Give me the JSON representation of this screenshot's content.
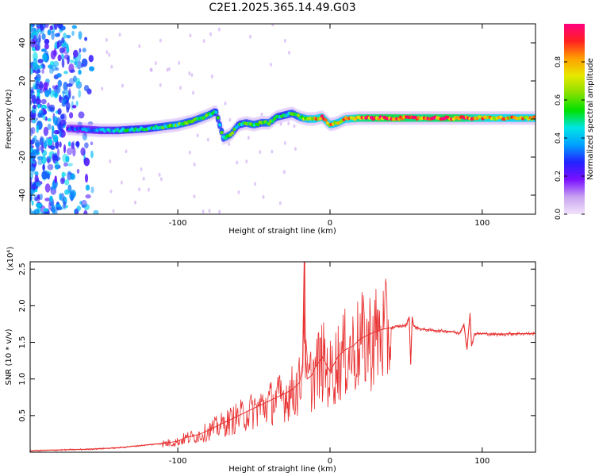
{
  "title": "C2E1.2025.365.14.49.G03",
  "chart_data": [
    {
      "type": "heatmap",
      "title": "C2E1.2025.365.14.49.G03",
      "xlabel": "Height of straight line (km)",
      "ylabel": "Frequency (Hz)",
      "xlim": [
        -197,
        135
      ],
      "ylim": [
        -50,
        50
      ],
      "xticks": [
        -100,
        0,
        100
      ],
      "xtick_labels": [
        "-100",
        "0",
        "100"
      ],
      "yticks": [
        -40,
        -20,
        0,
        20,
        40
      ],
      "ytick_labels": [
        "-40",
        "-20",
        "0",
        "20",
        "40"
      ],
      "grid": false,
      "colorbar": {
        "label": "Normalized spectral amplitude",
        "range": [
          0,
          1
        ],
        "ticks": [
          0.0,
          0.2,
          0.4,
          0.6,
          0.8
        ],
        "tick_labels": [
          "0.0",
          "0.2",
          "0.4",
          "0.6",
          "0.8"
        ],
        "colormap": [
          "#f2e4fb",
          "#c9a3f0",
          "#7a10ff",
          "#2222ff",
          "#00a0ff",
          "#00e5e5",
          "#00e000",
          "#88e000",
          "#e8e800",
          "#ffa000",
          "#ff2020",
          "#ff0080"
        ]
      },
      "ridge": {
        "x": [
          -170,
          -160,
          -150,
          -140,
          -130,
          -120,
          -110,
          -100,
          -90,
          -80,
          -75,
          -70,
          -65,
          -60,
          -55,
          -50,
          -45,
          -40,
          -35,
          -30,
          -25,
          -20,
          -15,
          -10,
          -5,
          0,
          5,
          10,
          20,
          40,
          60,
          80,
          100,
          120,
          135
        ],
        "y": [
          -5,
          -5.5,
          -6,
          -6,
          -5.5,
          -5,
          -4,
          -3,
          -1,
          2,
          4,
          -10,
          -8,
          -3,
          -2,
          -3,
          -2,
          -2,
          1,
          2,
          3,
          1,
          0,
          0,
          1,
          -3,
          -2,
          0,
          0.5,
          0.5,
          0.5,
          0.5,
          0.5,
          0.5,
          0.5
        ],
        "amplitude": [
          0.3,
          0.35,
          0.4,
          0.45,
          0.5,
          0.5,
          0.55,
          0.6,
          0.55,
          0.6,
          0.5,
          0.55,
          0.6,
          0.5,
          0.55,
          0.6,
          0.55,
          0.6,
          0.55,
          0.5,
          0.55,
          0.6,
          0.75,
          0.8,
          0.85,
          0.8,
          0.75,
          0.8,
          0.9,
          0.95,
          0.9,
          0.95,
          0.85,
          0.8,
          0.8
        ]
      }
    },
    {
      "type": "line",
      "xlabel": "Height of straight line (km)",
      "ylabel": "SNR (10 * v/v)",
      "y_multiplier_label": "(x10⁴)",
      "xlim": [
        -197,
        135
      ],
      "ylim": [
        0,
        2.6
      ],
      "xticks": [
        -100,
        0,
        100
      ],
      "xtick_labels": [
        "-100",
        "0",
        "100"
      ],
      "yticks": [
        0.5,
        1.0,
        1.5,
        2.0,
        2.5
      ],
      "ytick_labels": [
        "0.5",
        "1.0",
        "1.5",
        "2.0",
        "2.5"
      ],
      "grid": false,
      "series": [
        {
          "color": "#e83030",
          "x": [
            -197,
            -180,
            -160,
            -150,
            -140,
            -130,
            -120,
            -110,
            -100,
            -95,
            -90,
            -85,
            -80,
            -75,
            -70,
            -65,
            -60,
            -55,
            -50,
            -45,
            -40,
            -35,
            -30,
            -25,
            -20,
            -18,
            -17,
            -16,
            -15,
            -12,
            -10,
            -5,
            0,
            5,
            10,
            15,
            20,
            25,
            30,
            35,
            40,
            45,
            50,
            52,
            53,
            54,
            55,
            60,
            70,
            80,
            85,
            88,
            90,
            92,
            93,
            95,
            100,
            110,
            120,
            135
          ],
          "y": [
            0.02,
            0.03,
            0.04,
            0.05,
            0.06,
            0.08,
            0.1,
            0.12,
            0.15,
            0.2,
            0.22,
            0.25,
            0.3,
            0.35,
            0.4,
            0.45,
            0.5,
            0.55,
            0.6,
            0.65,
            0.7,
            0.75,
            0.8,
            0.85,
            0.95,
            1.2,
            2.6,
            1.3,
            1.0,
            1.05,
            1.15,
            1.3,
            1.1,
            1.3,
            1.4,
            1.45,
            1.55,
            1.6,
            1.65,
            1.68,
            1.7,
            1.72,
            1.73,
            1.85,
            1.2,
            1.85,
            1.72,
            1.68,
            1.66,
            1.65,
            1.62,
            1.75,
            1.4,
            1.9,
            1.45,
            1.62,
            1.62,
            1.61,
            1.62,
            1.62
          ]
        }
      ]
    }
  ]
}
